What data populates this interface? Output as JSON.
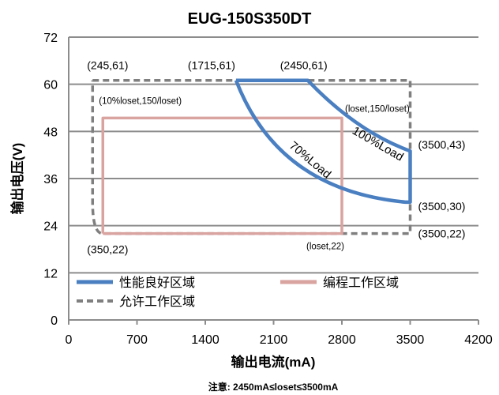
{
  "chart_data": {
    "type": "line",
    "title": "EUG-150S350DT",
    "xlabel": "输出电流(mA)",
    "ylabel": "输出电压(V)",
    "xlim": [
      0,
      4200
    ],
    "ylim": [
      0,
      72
    ],
    "xticks": [
      "0",
      "700",
      "1400",
      "2100",
      "2800",
      "3500",
      "4200"
    ],
    "yticks": [
      "0",
      "12",
      "24",
      "36",
      "48",
      "60",
      "72"
    ],
    "grid": "horizontal",
    "legend_position": "bottom-inside",
    "series": [
      {
        "name": "性能良好区域",
        "color": "#4a7fc1",
        "style": "solid",
        "points": [
          [
            1715,
            61
          ],
          [
            2450,
            61
          ],
          [
            2800,
            51.4
          ],
          [
            3500,
            43
          ],
          [
            3500,
            30
          ],
          [
            3200,
            30
          ],
          [
            2850,
            32
          ],
          [
            2550,
            38
          ],
          [
            2200,
            45.5
          ],
          [
            1715,
            61
          ]
        ]
      },
      {
        "name": "编程工作区域",
        "color": "#d9a3a0",
        "style": "solid",
        "points": [
          [
            350,
            22
          ],
          [
            2800,
            22
          ],
          [
            2800,
            51.4
          ],
          [
            350,
            51.4
          ],
          [
            350,
            22
          ]
        ]
      },
      {
        "name": "允许工作区域",
        "color": "#7f7f7f",
        "style": "dashed",
        "points": [
          [
            245,
            61
          ],
          [
            3500,
            61
          ],
          [
            3500,
            22
          ],
          [
            350,
            22
          ],
          [
            245,
            24
          ],
          [
            245,
            61
          ]
        ]
      }
    ],
    "annotations": [
      {
        "text": "(245,61)",
        "x": 245,
        "y": 61
      },
      {
        "text": "(1715,61)",
        "x": 1715,
        "y": 61
      },
      {
        "text": "(2450,61)",
        "x": 2450,
        "y": 61
      },
      {
        "text": "(10%loset,150/loset)",
        "x": 350,
        "y": 51.4
      },
      {
        "text": "(loset,150/loset)",
        "x": 2800,
        "y": 51.4
      },
      {
        "text": "(3500,43)",
        "x": 3500,
        "y": 43
      },
      {
        "text": "(3500,30)",
        "x": 3500,
        "y": 30
      },
      {
        "text": "(3500,22)",
        "x": 3500,
        "y": 22
      },
      {
        "text": "(350,22)",
        "x": 350,
        "y": 22
      },
      {
        "text": "(loset,22)",
        "x": 2800,
        "y": 22
      },
      {
        "text": "100%Load",
        "x": 3150,
        "y": 44
      },
      {
        "text": "70%Load",
        "x": 2450,
        "y": 40
      }
    ],
    "note": "注意: 2450mA≤loset≤3500mA"
  }
}
